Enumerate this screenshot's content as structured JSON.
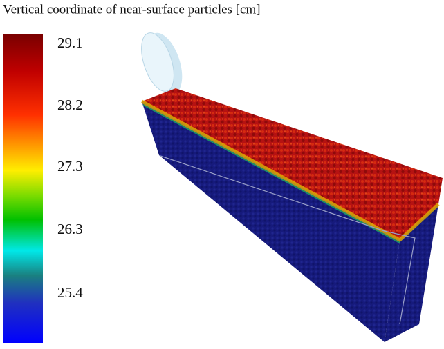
{
  "title": "Vertical coordinate of near-surface particles [cm]",
  "colorbar": {
    "labels": [
      "29.1",
      "28.2",
      "27.3",
      "26.3",
      "25.4"
    ]
  }
}
